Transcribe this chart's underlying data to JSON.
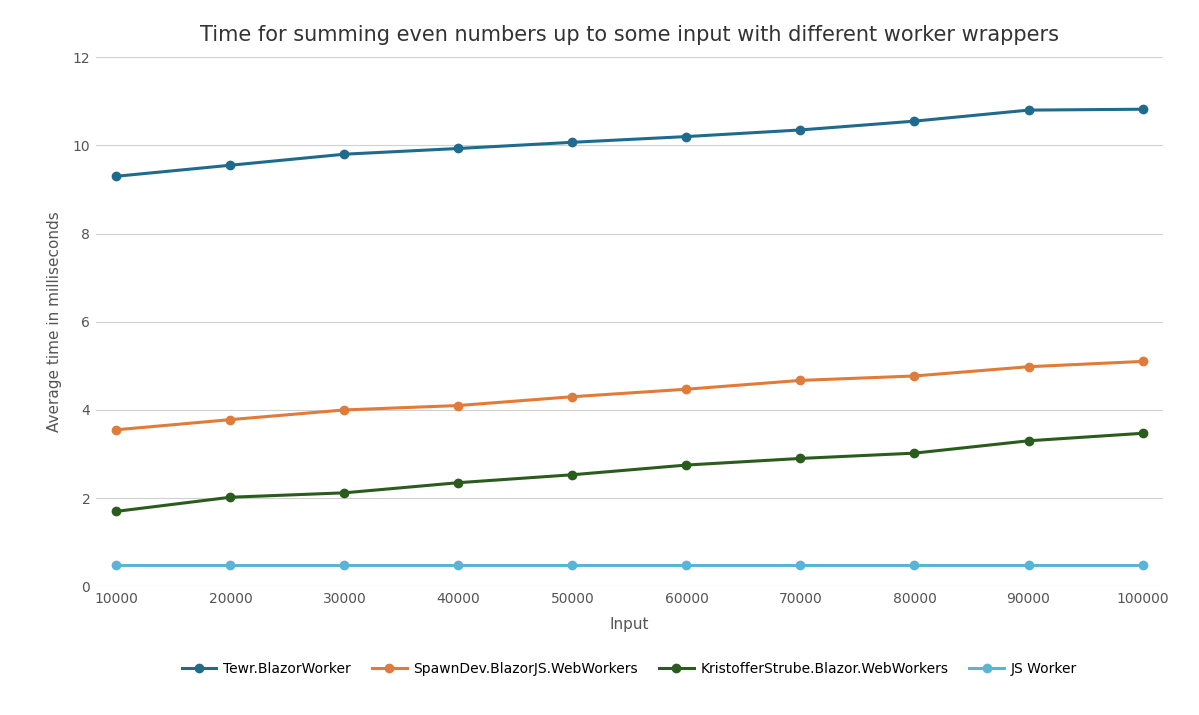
{
  "title": "Time for summing even numbers up to some input with different worker wrappers",
  "xlabel": "Input",
  "ylabel": "Average time in milliseconds",
  "x": [
    10000,
    20000,
    30000,
    40000,
    50000,
    60000,
    70000,
    80000,
    90000,
    100000
  ],
  "series": [
    {
      "label": "Tewr.BlazorWorker",
      "color": "#1f6b8e",
      "marker": "o",
      "values": [
        9.3,
        9.55,
        9.8,
        9.93,
        10.07,
        10.2,
        10.35,
        10.55,
        10.8,
        10.82
      ]
    },
    {
      "label": "SpawnDev.BlazorJS.WebWorkers",
      "color": "#e07b39",
      "marker": "o",
      "values": [
        3.55,
        3.78,
        4.0,
        4.1,
        4.3,
        4.47,
        4.67,
        4.77,
        4.98,
        5.1
      ]
    },
    {
      "label": "KristofferStrube.Blazor.WebWorkers",
      "color": "#2a5c1e",
      "marker": "o",
      "values": [
        1.7,
        2.02,
        2.12,
        2.35,
        2.53,
        2.75,
        2.9,
        3.02,
        3.3,
        3.47
      ]
    },
    {
      "label": "JS Worker",
      "color": "#5ab4d6",
      "marker": "o",
      "values": [
        0.48,
        0.48,
        0.48,
        0.48,
        0.48,
        0.48,
        0.48,
        0.48,
        0.48,
        0.48
      ]
    }
  ],
  "ylim": [
    0,
    12
  ],
  "yticks": [
    0,
    2,
    4,
    6,
    8,
    10,
    12
  ],
  "background_color": "#ffffff",
  "grid_color": "#d0d0d0",
  "title_fontsize": 15,
  "label_fontsize": 11,
  "tick_fontsize": 10,
  "legend_fontsize": 10,
  "linewidth": 2.2,
  "markersize": 6,
  "text_color": "#555555",
  "title_color": "#333333"
}
